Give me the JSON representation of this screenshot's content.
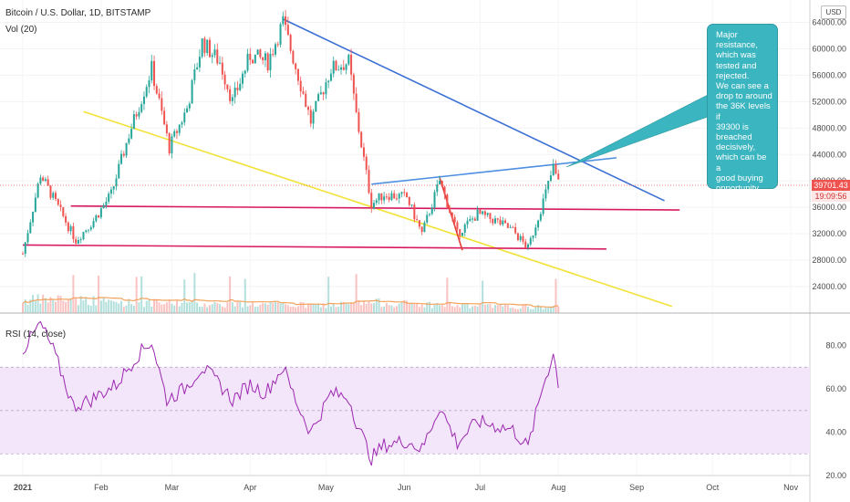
{
  "header": {
    "title": "Bitcoin / U.S. Dollar, 1D, BITSTAMP",
    "volume_label": "Vol (20)",
    "rsi_label": "RSI (14, close)",
    "currency": "USD"
  },
  "price_tag": {
    "price": "39701.43",
    "countdown": "19:09:56"
  },
  "annotation": "Major\nresistance,\nwhich was\ntested and\nrejected.\nWe can see a\ndrop to around\nthe 36K levels if\n39300 is\nbreached\ndecisively,\nwhich can be a\ngood buying\nopportunity.",
  "colors": {
    "up": "#26a69a",
    "down": "#ef5350",
    "rsi": "#9c27b0",
    "rsi_band": "#f3e6fb",
    "annotation": "#3bb5bf"
  },
  "chart_data": {
    "type": "candlestick",
    "price_axis": {
      "ylim": [
        20000,
        66000
      ],
      "ticks": [
        "64000.00",
        "60000.00",
        "56000.00",
        "52000.00",
        "48000.00",
        "44000.00",
        "40000.00",
        "36000.00",
        "32000.00",
        "28000.00",
        "24000.00"
      ]
    },
    "rsi_axis": {
      "ylim": [
        20,
        95
      ],
      "ticks": [
        "80.00",
        "60.00",
        "40.00",
        "20.00"
      ],
      "band": [
        30,
        70
      ]
    },
    "x_axis": {
      "ticks": [
        "2021",
        "Feb",
        "Mar",
        "Apr",
        "May",
        "Jun",
        "Jul",
        "Aug",
        "Sep",
        "Oct",
        "Nov"
      ]
    },
    "price_path": [
      [
        "2021-01-01",
        29000
      ],
      [
        "2021-01-08",
        41000
      ],
      [
        "2021-01-15",
        36000
      ],
      [
        "2021-01-22",
        31000
      ],
      [
        "2021-01-29",
        34000
      ],
      [
        "2021-02-05",
        38000
      ],
      [
        "2021-02-12",
        47000
      ],
      [
        "2021-02-21",
        57000
      ],
      [
        "2021-02-28",
        45000
      ],
      [
        "2021-03-07",
        51000
      ],
      [
        "2021-03-13",
        61000
      ],
      [
        "2021-03-20",
        58000
      ],
      [
        "2021-03-25",
        52000
      ],
      [
        "2021-04-01",
        59000
      ],
      [
        "2021-04-08",
        58000
      ],
      [
        "2021-04-14",
        64000
      ],
      [
        "2021-04-20",
        56000
      ],
      [
        "2021-04-25",
        49000
      ],
      [
        "2021-05-03",
        57000
      ],
      [
        "2021-05-10",
        58000
      ],
      [
        "2021-05-13",
        50000
      ],
      [
        "2021-05-19",
        36500
      ],
      [
        "2021-05-24",
        38000
      ],
      [
        "2021-06-02",
        37500
      ],
      [
        "2021-06-08",
        32000
      ],
      [
        "2021-06-15",
        40000
      ],
      [
        "2021-06-22",
        32000
      ],
      [
        "2021-06-30",
        35000
      ],
      [
        "2021-07-07",
        34000
      ],
      [
        "2021-07-14",
        32500
      ],
      [
        "2021-07-20",
        29800
      ],
      [
        "2021-07-26",
        37000
      ],
      [
        "2021-07-30",
        42000
      ],
      [
        "2021-08-01",
        39700
      ]
    ],
    "volume_path": [
      [
        "2021-01-01",
        13
      ],
      [
        "2021-01-15",
        15
      ],
      [
        "2021-02-10",
        11
      ],
      [
        "2021-03-05",
        10
      ],
      [
        "2021-04-01",
        9
      ],
      [
        "2021-05-01",
        8
      ],
      [
        "2021-05-20",
        11
      ],
      [
        "2021-06-10",
        9
      ],
      [
        "2021-07-01",
        7
      ],
      [
        "2021-08-01",
        6
      ]
    ],
    "rsi": [
      [
        "2021-01-01",
        78
      ],
      [
        "2021-01-08",
        90
      ],
      [
        "2021-01-13",
        78
      ],
      [
        "2021-01-21",
        52
      ],
      [
        "2021-01-28",
        55
      ],
      [
        "2021-02-07",
        62
      ],
      [
        "2021-02-15",
        75
      ],
      [
        "2021-02-21",
        82
      ],
      [
        "2021-02-27",
        55
      ],
      [
        "2021-03-06",
        60
      ],
      [
        "2021-03-13",
        70
      ],
      [
        "2021-03-20",
        62
      ],
      [
        "2021-03-25",
        55
      ],
      [
        "2021-04-01",
        62
      ],
      [
        "2021-04-07",
        58
      ],
      [
        "2021-04-14",
        70
      ],
      [
        "2021-04-20",
        52
      ],
      [
        "2021-04-25",
        40
      ],
      [
        "2021-05-03",
        58
      ],
      [
        "2021-05-10",
        56
      ],
      [
        "2021-05-13",
        45
      ],
      [
        "2021-05-19",
        28
      ],
      [
        "2021-05-24",
        34
      ],
      [
        "2021-06-02",
        36
      ],
      [
        "2021-06-08",
        32
      ],
      [
        "2021-06-15",
        52
      ],
      [
        "2021-06-22",
        35
      ],
      [
        "2021-06-30",
        45
      ],
      [
        "2021-07-07",
        43
      ],
      [
        "2021-07-14",
        41
      ],
      [
        "2021-07-20",
        33
      ],
      [
        "2021-07-26",
        62
      ],
      [
        "2021-07-30",
        76
      ],
      [
        "2021-08-01",
        63
      ]
    ],
    "drawings": [
      {
        "name": "falling-resistance-line",
        "color": "#3b6fd4",
        "points": [
          [
            "2021-04-14",
            64500
          ],
          [
            "2021-09-12",
            37000
          ]
        ]
      },
      {
        "name": "rising-resistance-line",
        "color": "#4d8fe0",
        "points": [
          [
            "2021-05-19",
            39500
          ],
          [
            "2021-08-24",
            43500
          ]
        ]
      },
      {
        "name": "yellow-trendline",
        "color": "#f2e236",
        "points": [
          [
            "2021-01-25",
            50500
          ],
          [
            "2021-09-15",
            21000
          ]
        ]
      },
      {
        "name": "support-36k-line",
        "color": "#d81b60",
        "points": [
          [
            "2021-01-20",
            36200
          ],
          [
            "2021-09-18",
            35600
          ]
        ]
      },
      {
        "name": "support-30k-line",
        "color": "#d81b60",
        "points": [
          [
            "2021-01-01",
            30300
          ],
          [
            "2021-08-20",
            29700
          ]
        ]
      },
      {
        "name": "red-short-line",
        "color": "#e53935",
        "points": [
          [
            "2021-06-15",
            40500
          ],
          [
            "2021-06-24",
            29500
          ]
        ]
      }
    ]
  }
}
